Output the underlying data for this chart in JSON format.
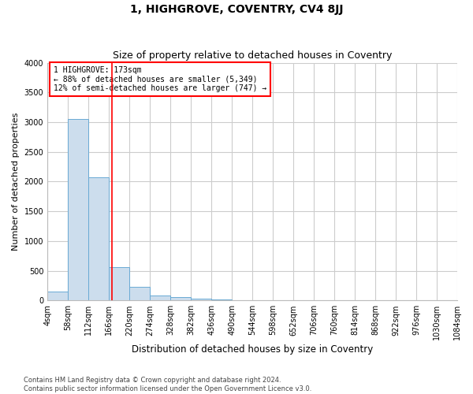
{
  "title": "1, HIGHGROVE, COVENTRY, CV4 8JJ",
  "subtitle": "Size of property relative to detached houses in Coventry",
  "xlabel": "Distribution of detached houses by size in Coventry",
  "ylabel": "Number of detached properties",
  "bar_edges": [
    4,
    58,
    112,
    166,
    220,
    274,
    328,
    382,
    436,
    490,
    544,
    598,
    652,
    706,
    760,
    814,
    868,
    922,
    976,
    1030,
    1084
  ],
  "bar_heights": [
    150,
    3050,
    2070,
    560,
    230,
    85,
    55,
    30,
    20,
    10,
    5,
    3,
    2,
    2,
    1,
    1,
    1,
    1,
    1,
    1
  ],
  "bar_color": "#ccdded",
  "bar_edge_color": "#6aaad4",
  "marker_value": 173,
  "marker_color": "red",
  "annotation_text": "1 HIGHGROVE: 173sqm\n← 88% of detached houses are smaller (5,349)\n12% of semi-detached houses are larger (747) →",
  "annotation_box_color": "white",
  "annotation_box_edge_color": "red",
  "ylim": [
    0,
    4000
  ],
  "yticks": [
    0,
    500,
    1000,
    1500,
    2000,
    2500,
    3000,
    3500,
    4000
  ],
  "footer_line1": "Contains HM Land Registry data © Crown copyright and database right 2024.",
  "footer_line2": "Contains public sector information licensed under the Open Government Licence v3.0.",
  "bg_color": "white",
  "grid_color": "#cccccc",
  "title_fontsize": 10,
  "subtitle_fontsize": 9,
  "ylabel_fontsize": 8,
  "xlabel_fontsize": 8.5,
  "tick_fontsize": 7,
  "annotation_fontsize": 7,
  "footer_fontsize": 6
}
